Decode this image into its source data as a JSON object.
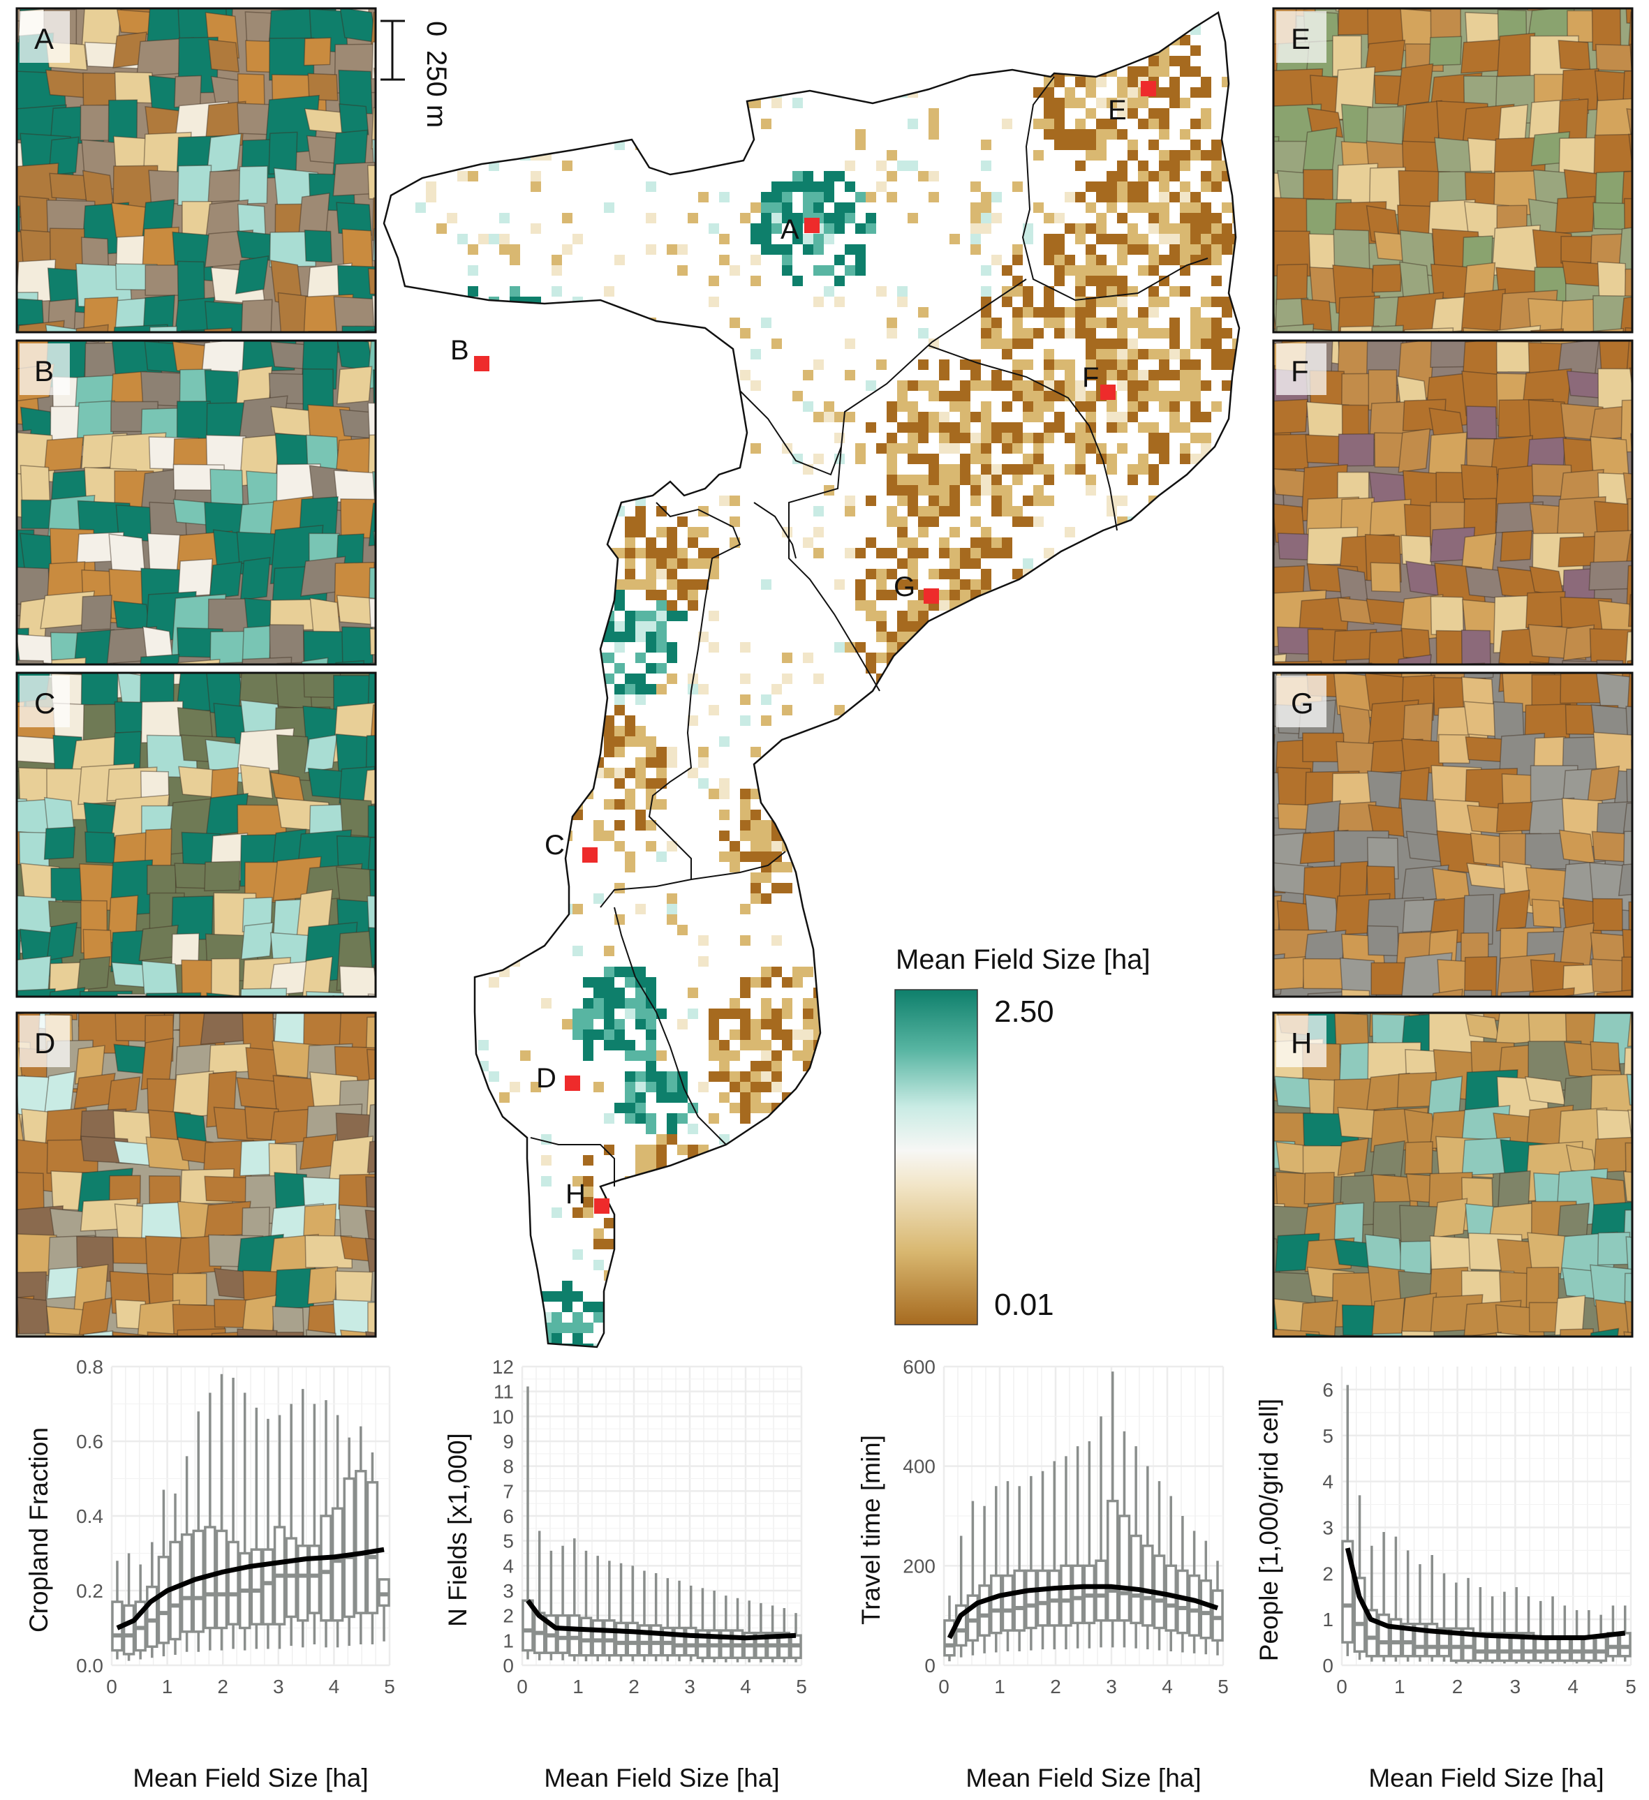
{
  "figure": {
    "scale_bar": {
      "zero": "0",
      "distance": "250 m"
    },
    "legend": {
      "title": "Mean Field Size [ha]",
      "max_label": "2.50",
      "min_label": "0.01",
      "colors": [
        "#a66a1f",
        "#d9b871",
        "#f2e6c9",
        "#f7f7f5",
        "#c9ebe4",
        "#58b5a2",
        "#0e7f6b"
      ]
    },
    "map_sites": [
      "A",
      "B",
      "C",
      "D",
      "E",
      "F",
      "G",
      "H"
    ],
    "marker_color": "#ee2b2b",
    "inset_panels": [
      {
        "letter": "A",
        "base": "#0f7f6b",
        "alt": [
          "#c98b3f",
          "#e8cf97",
          "#a9ddd3",
          "#b07a3c",
          "#f3ecdc"
        ],
        "bg": "#9e8a74"
      },
      {
        "letter": "B",
        "base": "#0f7f6b",
        "alt": [
          "#79c5b4",
          "#c98b3f",
          "#e8cf97",
          "#f4f0e8"
        ],
        "bg": "#8d8173"
      },
      {
        "letter": "C",
        "base": "#0f7f6b",
        "alt": [
          "#c98b3f",
          "#e8cf97",
          "#a9ddd3",
          "#f3ecdc"
        ],
        "bg": "#6f7a55"
      },
      {
        "letter": "D",
        "base": "#b87a36",
        "alt": [
          "#d7ab63",
          "#e8cf97",
          "#8a6a4e",
          "#c9ebe4",
          "#0f7f6b"
        ],
        "bg": "#a9a28d"
      },
      {
        "letter": "E",
        "base": "#b3722c",
        "alt": [
          "#d4a45c",
          "#8aa36f",
          "#c28c4a",
          "#e8cf97"
        ],
        "bg": "#9aa67e"
      },
      {
        "letter": "F",
        "base": "#b3722c",
        "alt": [
          "#d4a45c",
          "#8c6a7a",
          "#c28c4a",
          "#e8cf97"
        ],
        "bg": "#8f7f76"
      },
      {
        "letter": "G",
        "base": "#b3722c",
        "alt": [
          "#cf9a52",
          "#c28c4a",
          "#e2bc7c",
          "#9a9a94"
        ],
        "bg": "#8c8b86"
      },
      {
        "letter": "H",
        "base": "#c08a43",
        "alt": [
          "#d9b36e",
          "#e8cf97",
          "#8fcabd",
          "#0f7f6b"
        ],
        "bg": "#7f8468"
      }
    ]
  },
  "chart_data": [
    {
      "type": "box",
      "xlabel": "Mean Field Size [ha]",
      "ylabel": "Cropland Fraction",
      "xlim": [
        0,
        5
      ],
      "ylim": [
        0,
        0.8
      ],
      "xticks": [
        "0",
        "1",
        "2",
        "3",
        "4",
        "5"
      ],
      "yticks": [
        "0.0",
        "0.2",
        "0.4",
        "0.6",
        "0.8"
      ],
      "whisker_top": [
        0.28,
        0.3,
        0.27,
        0.33,
        0.47,
        0.46,
        0.56,
        0.68,
        0.73,
        0.78,
        0.77,
        0.73,
        0.69,
        0.66,
        0.67,
        0.7,
        0.74,
        0.7,
        0.71,
        0.67,
        0.61,
        0.64,
        0.57,
        0.21
      ],
      "q3": [
        0.17,
        0.16,
        0.17,
        0.21,
        0.29,
        0.33,
        0.35,
        0.36,
        0.37,
        0.36,
        0.33,
        0.3,
        0.31,
        0.31,
        0.37,
        0.34,
        0.32,
        0.32,
        0.4,
        0.42,
        0.5,
        0.52,
        0.49,
        0.23
      ],
      "median": [
        0.08,
        0.08,
        0.1,
        0.12,
        0.14,
        0.16,
        0.18,
        0.18,
        0.19,
        0.19,
        0.19,
        0.2,
        0.2,
        0.22,
        0.24,
        0.24,
        0.24,
        0.24,
        0.25,
        0.28,
        0.29,
        0.3,
        0.29,
        0.19
      ],
      "q1": [
        0.04,
        0.03,
        0.04,
        0.05,
        0.06,
        0.07,
        0.09,
        0.09,
        0.1,
        0.1,
        0.11,
        0.1,
        0.11,
        0.11,
        0.11,
        0.13,
        0.12,
        0.14,
        0.12,
        0.12,
        0.13,
        0.14,
        0.14,
        0.16
      ],
      "trend": [
        [
          0.1,
          0.1
        ],
        [
          0.4,
          0.12
        ],
        [
          0.7,
          0.17
        ],
        [
          1.0,
          0.2
        ],
        [
          1.5,
          0.23
        ],
        [
          2.0,
          0.25
        ],
        [
          2.5,
          0.265
        ],
        [
          3.0,
          0.275
        ],
        [
          3.5,
          0.285
        ],
        [
          4.0,
          0.29
        ],
        [
          4.5,
          0.3
        ],
        [
          4.9,
          0.31
        ]
      ]
    },
    {
      "type": "box",
      "xlabel": "Mean Field Size [ha]",
      "ylabel": "N Fields [x1,000]",
      "xlim": [
        0,
        5
      ],
      "ylim": [
        0,
        12
      ],
      "xticks": [
        "0",
        "1",
        "2",
        "3",
        "4",
        "5"
      ],
      "yticks": [
        "0",
        "1",
        "2",
        "3",
        "4",
        "5",
        "6",
        "7",
        "8",
        "9",
        "10",
        "11",
        "12"
      ],
      "whisker_top": [
        11.2,
        5.4,
        4.6,
        4.8,
        5.1,
        4.6,
        4.4,
        4.2,
        4.1,
        4.0,
        3.8,
        3.7,
        3.5,
        3.4,
        3.2,
        3.1,
        3.0,
        2.8,
        2.7,
        2.6,
        2.5,
        2.4,
        2.3,
        2.1
      ],
      "q3": [
        2.6,
        2.1,
        2.0,
        2.0,
        2.0,
        1.9,
        1.8,
        1.8,
        1.7,
        1.7,
        1.6,
        1.6,
        1.5,
        1.5,
        1.5,
        1.4,
        1.4,
        1.4,
        1.4,
        1.3,
        1.3,
        1.3,
        1.3,
        1.2
      ],
      "median": [
        1.4,
        1.3,
        1.2,
        1.1,
        1.1,
        1.0,
        1.0,
        1.0,
        0.9,
        0.9,
        0.9,
        0.9,
        0.9,
        0.8,
        0.8,
        0.8,
        0.8,
        0.8,
        0.8,
        0.8,
        0.8,
        0.8,
        0.8,
        0.8
      ],
      "q1": [
        0.6,
        0.5,
        0.5,
        0.5,
        0.4,
        0.4,
        0.4,
        0.4,
        0.4,
        0.4,
        0.4,
        0.4,
        0.4,
        0.4,
        0.4,
        0.3,
        0.3,
        0.3,
        0.3,
        0.3,
        0.3,
        0.3,
        0.3,
        0.3
      ],
      "trend": [
        [
          0.1,
          2.6
        ],
        [
          0.3,
          2.0
        ],
        [
          0.6,
          1.5
        ],
        [
          1.0,
          1.45
        ],
        [
          2.0,
          1.35
        ],
        [
          3.0,
          1.2
        ],
        [
          4.0,
          1.1
        ],
        [
          4.9,
          1.2
        ]
      ]
    },
    {
      "type": "box",
      "xlabel": "Mean Field Size [ha]",
      "ylabel": "Travel time [min]",
      "xlim": [
        0,
        5
      ],
      "ylim": [
        0,
        600
      ],
      "xticks": [
        "0",
        "1",
        "2",
        "3",
        "4",
        "5"
      ],
      "yticks": [
        "0",
        "200",
        "400",
        "600"
      ],
      "whisker_top": [
        140,
        260,
        330,
        320,
        360,
        370,
        360,
        380,
        390,
        410,
        420,
        440,
        450,
        500,
        590,
        470,
        440,
        400,
        370,
        340,
        300,
        270,
        250,
        210
      ],
      "q3": [
        90,
        120,
        140,
        160,
        180,
        180,
        190,
        190,
        190,
        190,
        200,
        200,
        200,
        210,
        330,
        300,
        260,
        240,
        220,
        200,
        190,
        180,
        170,
        150
      ],
      "median": [
        40,
        70,
        90,
        100,
        110,
        110,
        115,
        120,
        125,
        130,
        130,
        135,
        140,
        140,
        150,
        145,
        140,
        135,
        130,
        120,
        115,
        110,
        105,
        95
      ],
      "q1": [
        20,
        40,
        50,
        60,
        65,
        70,
        70,
        75,
        80,
        80,
        80,
        85,
        85,
        90,
        90,
        90,
        85,
        80,
        75,
        70,
        65,
        60,
        55,
        50
      ],
      "trend": [
        [
          0.1,
          55
        ],
        [
          0.3,
          100
        ],
        [
          0.6,
          125
        ],
        [
          1.0,
          140
        ],
        [
          1.5,
          150
        ],
        [
          2.0,
          155
        ],
        [
          2.5,
          158
        ],
        [
          3.0,
          158
        ],
        [
          3.5,
          152
        ],
        [
          4.0,
          142
        ],
        [
          4.5,
          130
        ],
        [
          4.9,
          115
        ]
      ]
    },
    {
      "type": "box",
      "xlabel": "Mean Field Size [ha]",
      "ylabel": "People [1,000/grid cell]",
      "xlim": [
        0,
        5
      ],
      "ylim": [
        0,
        6.5
      ],
      "xticks": [
        "0",
        "1",
        "2",
        "3",
        "4",
        "5"
      ],
      "yticks": [
        "0",
        "1",
        "2",
        "3",
        "4",
        "5",
        "6"
      ],
      "whisker_top": [
        6.1,
        3.7,
        2.6,
        2.9,
        2.8,
        2.5,
        2.2,
        2.4,
        2.0,
        1.8,
        1.9,
        1.7,
        1.5,
        1.6,
        1.7,
        1.5,
        1.4,
        1.5,
        1.3,
        1.2,
        1.2,
        1.1,
        1.3,
        1.3
      ],
      "q3": [
        2.7,
        1.9,
        1.2,
        1.1,
        1.0,
        0.9,
        0.9,
        0.9,
        0.8,
        0.8,
        0.8,
        0.7,
        0.7,
        0.7,
        0.7,
        0.7,
        0.6,
        0.6,
        0.6,
        0.6,
        0.6,
        0.6,
        0.7,
        0.7
      ],
      "median": [
        1.3,
        0.9,
        0.6,
        0.5,
        0.5,
        0.5,
        0.4,
        0.4,
        0.4,
        0.4,
        0.4,
        0.3,
        0.3,
        0.3,
        0.3,
        0.3,
        0.3,
        0.3,
        0.3,
        0.3,
        0.3,
        0.3,
        0.4,
        0.4
      ],
      "q1": [
        0.5,
        0.3,
        0.2,
        0.2,
        0.2,
        0.2,
        0.2,
        0.2,
        0.2,
        0.1,
        0.1,
        0.1,
        0.1,
        0.1,
        0.1,
        0.1,
        0.1,
        0.1,
        0.1,
        0.1,
        0.1,
        0.1,
        0.2,
        0.2
      ],
      "trend": [
        [
          0.1,
          2.55
        ],
        [
          0.3,
          1.5
        ],
        [
          0.5,
          1.0
        ],
        [
          0.8,
          0.85
        ],
        [
          1.5,
          0.75
        ],
        [
          2.5,
          0.65
        ],
        [
          3.5,
          0.6
        ],
        [
          4.2,
          0.6
        ],
        [
          4.9,
          0.7
        ]
      ]
    }
  ]
}
